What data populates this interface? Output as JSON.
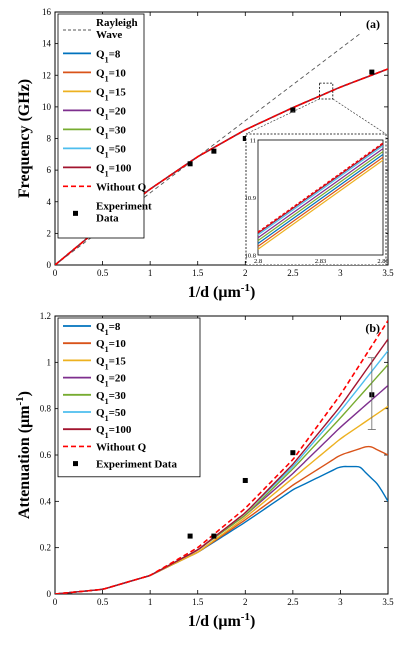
{
  "chart_data": [
    {
      "type": "line",
      "panel_label": "(a)",
      "xlabel": "1/d (μm⁻¹)",
      "ylabel": "Frequency (GHz)",
      "xlim": [
        0,
        3.5
      ],
      "ylim": [
        0,
        16
      ],
      "xticks": [
        "0",
        "0.5",
        "1",
        "1.5",
        "2",
        "2.5",
        "3",
        "3.5"
      ],
      "yticks": [
        "0",
        "2",
        "4",
        "6",
        "8",
        "10",
        "12",
        "14",
        "16"
      ],
      "grid": false,
      "legend_position": "top-left",
      "legend": [
        "Rayleigh Wave",
        "Q₁=8",
        "Q₁=10",
        "Q₁=15",
        "Q₁=20",
        "Q₁=30",
        "Q₁=50",
        "Q₁=100",
        "Without Q",
        "Experiment Data"
      ],
      "series": [
        {
          "name": "Rayleigh Wave",
          "color": "#555555",
          "dash": "dashed",
          "x": [
            0,
            3.2
          ],
          "y": [
            0,
            14.6
          ]
        },
        {
          "name": "Q₁=8",
          "color": "#0072BD",
          "x": [
            0,
            0.5,
            1.0,
            1.5,
            2.0,
            2.5,
            3.0,
            3.5
          ],
          "y": [
            0,
            2.5,
            4.8,
            6.85,
            8.55,
            9.95,
            11.25,
            12.4
          ]
        },
        {
          "name": "Q₁=10",
          "color": "#D95319",
          "x": [
            0,
            0.5,
            1.0,
            1.5,
            2.0,
            2.5,
            3.0,
            3.5
          ],
          "y": [
            0,
            2.5,
            4.8,
            6.85,
            8.55,
            9.95,
            11.25,
            12.4
          ]
        },
        {
          "name": "Q₁=15",
          "color": "#EDB120",
          "x": [
            0,
            0.5,
            1.0,
            1.5,
            2.0,
            2.5,
            3.0,
            3.5
          ],
          "y": [
            0,
            2.5,
            4.8,
            6.85,
            8.55,
            9.95,
            11.25,
            12.4
          ]
        },
        {
          "name": "Q₁=20",
          "color": "#7E2F8E",
          "x": [
            0,
            0.5,
            1.0,
            1.5,
            2.0,
            2.5,
            3.0,
            3.5
          ],
          "y": [
            0,
            2.5,
            4.8,
            6.85,
            8.55,
            9.95,
            11.25,
            12.4
          ]
        },
        {
          "name": "Q₁=30",
          "color": "#77AC30",
          "x": [
            0,
            0.5,
            1.0,
            1.5,
            2.0,
            2.5,
            3.0,
            3.5
          ],
          "y": [
            0,
            2.5,
            4.8,
            6.85,
            8.55,
            9.95,
            11.25,
            12.4
          ]
        },
        {
          "name": "Q₁=50",
          "color": "#4DBEEE",
          "x": [
            0,
            0.5,
            1.0,
            1.5,
            2.0,
            2.5,
            3.0,
            3.5
          ],
          "y": [
            0,
            2.5,
            4.8,
            6.85,
            8.55,
            9.95,
            11.25,
            12.4
          ]
        },
        {
          "name": "Q₁=100",
          "color": "#A2142F",
          "x": [
            0,
            0.5,
            1.0,
            1.5,
            2.0,
            2.5,
            3.0,
            3.5
          ],
          "y": [
            0,
            2.5,
            4.8,
            6.85,
            8.55,
            9.95,
            11.25,
            12.4
          ]
        },
        {
          "name": "Without Q",
          "color": "#FF0000",
          "dash": "dashed",
          "x": [
            0,
            0.5,
            1.0,
            1.5,
            2.0,
            2.5,
            3.0,
            3.5
          ],
          "y": [
            0,
            2.5,
            4.8,
            6.85,
            8.55,
            9.95,
            11.25,
            12.4
          ]
        }
      ],
      "experiment": {
        "name": "Experiment Data",
        "x": [
          1.42,
          1.67,
          2.0,
          2.5,
          3.33
        ],
        "y": [
          6.4,
          7.2,
          8.0,
          9.8,
          12.2
        ]
      },
      "inset": {
        "xlim": [
          2.8,
          2.86
        ],
        "ylim": [
          10.8,
          11
        ],
        "xticks": [
          "2.8",
          "2.83",
          "2.86"
        ],
        "yticks": [
          "10.8",
          "10.9",
          "11"
        ],
        "lines": [
          {
            "color": "#EDB120",
            "y": [
              10.81,
              10.965
            ]
          },
          {
            "color": "#D95319",
            "y": [
              10.815,
              10.97
            ]
          },
          {
            "color": "#0072BD",
            "y": [
              10.82,
              10.975
            ]
          },
          {
            "color": "#77AC30",
            "y": [
              10.825,
              10.98
            ]
          },
          {
            "color": "#7E2F8E",
            "y": [
              10.83,
              10.985
            ]
          },
          {
            "color": "#4DBEEE",
            "y": [
              10.835,
              10.99
            ]
          },
          {
            "color": "#A2142F",
            "y": [
              10.838,
              10.993
            ]
          },
          {
            "color": "#FF0000",
            "dash": "dashed",
            "y": [
              10.84,
              10.995
            ]
          }
        ]
      }
    },
    {
      "type": "line",
      "panel_label": "(b)",
      "xlabel": "1/d (μm⁻¹)",
      "ylabel": "Attenuation (μm⁻¹)",
      "xlim": [
        0,
        3.5
      ],
      "ylim": [
        0,
        1.2
      ],
      "xticks": [
        "0",
        "0.5",
        "1",
        "1.5",
        "2",
        "2.5",
        "3",
        "3.5"
      ],
      "yticks": [
        "0",
        "0.2",
        "0.4",
        "0.6",
        "0.8",
        "1",
        "1.2"
      ],
      "grid": false,
      "legend_position": "top-left",
      "legend": [
        "Q₁=8",
        "Q₁=10",
        "Q₁=15",
        "Q₁=20",
        "Q₁=30",
        "Q₁=50",
        "Q₁=100",
        "Without Q",
        "Experiment Data"
      ],
      "series": [
        {
          "name": "Q₁=8",
          "color": "#0072BD",
          "x": [
            0,
            0.5,
            1.0,
            1.5,
            2.0,
            2.5,
            3.0,
            3.2,
            3.4,
            3.5
          ],
          "y": [
            0,
            0.02,
            0.08,
            0.18,
            0.31,
            0.45,
            0.55,
            0.55,
            0.47,
            0.4
          ]
        },
        {
          "name": "Q₁=10",
          "color": "#D95319",
          "x": [
            0,
            0.5,
            1.0,
            1.5,
            2.0,
            2.5,
            3.0,
            3.3,
            3.5
          ],
          "y": [
            0,
            0.02,
            0.08,
            0.18,
            0.32,
            0.47,
            0.6,
            0.64,
            0.6
          ]
        },
        {
          "name": "Q₁=15",
          "color": "#EDB120",
          "x": [
            0,
            0.5,
            1.0,
            1.5,
            2.0,
            2.5,
            3.0,
            3.5
          ],
          "y": [
            0,
            0.02,
            0.08,
            0.18,
            0.33,
            0.5,
            0.67,
            0.81
          ]
        },
        {
          "name": "Q₁=20",
          "color": "#7E2F8E",
          "x": [
            0,
            0.5,
            1.0,
            1.5,
            2.0,
            2.5,
            3.0,
            3.5
          ],
          "y": [
            0,
            0.02,
            0.08,
            0.19,
            0.34,
            0.52,
            0.72,
            0.9
          ]
        },
        {
          "name": "Q₁=30",
          "color": "#77AC30",
          "x": [
            0,
            0.5,
            1.0,
            1.5,
            2.0,
            2.5,
            3.0,
            3.5
          ],
          "y": [
            0,
            0.02,
            0.08,
            0.19,
            0.34,
            0.54,
            0.76,
            0.99
          ]
        },
        {
          "name": "Q₁=50",
          "color": "#4DBEEE",
          "x": [
            0,
            0.5,
            1.0,
            1.5,
            2.0,
            2.5,
            3.0,
            3.5
          ],
          "y": [
            0,
            0.02,
            0.08,
            0.19,
            0.35,
            0.55,
            0.79,
            1.05
          ]
        },
        {
          "name": "Q₁=100",
          "color": "#A2142F",
          "x": [
            0,
            0.5,
            1.0,
            1.5,
            2.0,
            2.5,
            3.0,
            3.5
          ],
          "y": [
            0,
            0.02,
            0.08,
            0.19,
            0.35,
            0.56,
            0.81,
            1.1
          ]
        },
        {
          "name": "Without Q",
          "color": "#FF0000",
          "dash": "dashed",
          "x": [
            0,
            0.5,
            1.0,
            1.5,
            2.0,
            2.5,
            3.0,
            3.5
          ],
          "y": [
            0,
            0.02,
            0.08,
            0.2,
            0.37,
            0.58,
            0.86,
            1.18
          ]
        }
      ],
      "experiment": {
        "name": "Experiment Data",
        "x": [
          1.42,
          1.67,
          2.0,
          2.5,
          3.33
        ],
        "y": [
          0.25,
          0.25,
          0.49,
          0.61,
          0.86
        ],
        "errorbar": {
          "x": 3.33,
          "low": 0.71,
          "high": 1.02
        }
      }
    }
  ]
}
